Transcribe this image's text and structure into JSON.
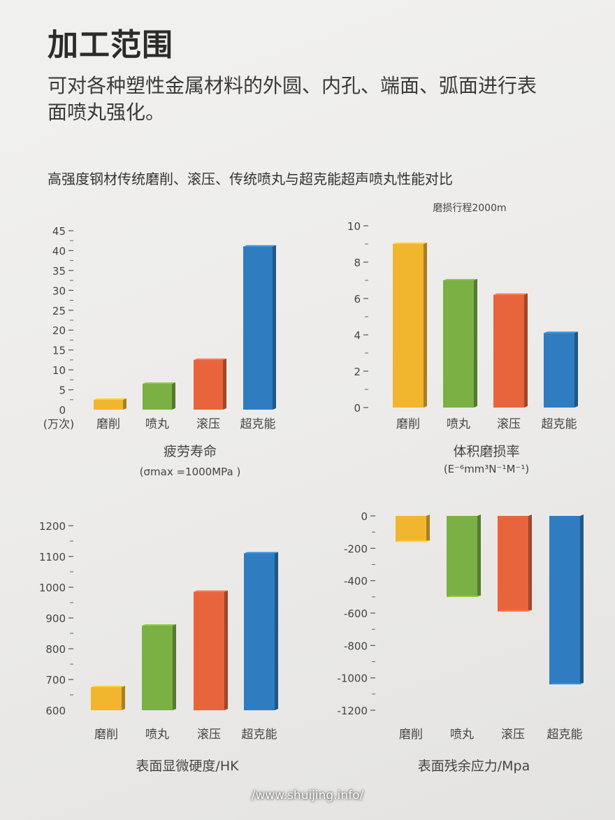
{
  "title": "加工范围",
  "subtitle": "可对各种塑性金属材料的外圆、内孔、端面、弧面进行表面喷丸强化。",
  "comparison_title": "高强度钢材传统磨削、滚压、传统喷丸与超克能超声喷丸性能对比",
  "footer": "/www.shuijing.info/",
  "colors": {
    "磨削": "#f2b62e",
    "喷丸": "#7bb044",
    "滚压": "#e8643c",
    "超克能": "#2f7cc1"
  },
  "chart_data": [
    {
      "type": "bar",
      "title": "疲劳寿命",
      "subtitle": "(σmax =1000MPa )",
      "unit_label": "(万次)",
      "categories": [
        "磨削",
        "喷丸",
        "滚压",
        "超克能"
      ],
      "values": [
        2.5,
        6.5,
        12.5,
        41
      ],
      "ylim": [
        0,
        45
      ],
      "yticks": [
        "0",
        "5",
        "10",
        "15",
        "20",
        "25",
        "30",
        "35",
        "40",
        "45"
      ]
    },
    {
      "type": "bar",
      "title": "体积磨损率",
      "subtitle": "(E⁻⁶mm³N⁻¹M⁻¹)",
      "annotation": "磨损行程2000m",
      "categories": [
        "磨削",
        "喷丸",
        "滚压",
        "超克能"
      ],
      "values": [
        9,
        7,
        6.2,
        4.1
      ],
      "ylim": [
        0,
        10
      ],
      "yticks": [
        "0",
        "2",
        "4",
        "6",
        "8",
        "10"
      ]
    },
    {
      "type": "bar",
      "title": "表面显微硬度/HK",
      "categories": [
        "磨削",
        "喷丸",
        "滚压",
        "超克能"
      ],
      "values": [
        675,
        875,
        985,
        1110
      ],
      "ylim": [
        600,
        1200
      ],
      "yticks": [
        "600",
        "700",
        "800",
        "900",
        "1000",
        "1100",
        "1200"
      ]
    },
    {
      "type": "bar",
      "title": "表面残余应力/Mpa",
      "categories": [
        "磨削",
        "喷丸",
        "滚压",
        "超克能"
      ],
      "values": [
        -160,
        -500,
        -590,
        -1040
      ],
      "ylim": [
        -1200,
        0
      ],
      "yticks": [
        "0",
        "-200",
        "-400",
        "-600",
        "-800",
        "-1000",
        "-1200"
      ]
    }
  ]
}
